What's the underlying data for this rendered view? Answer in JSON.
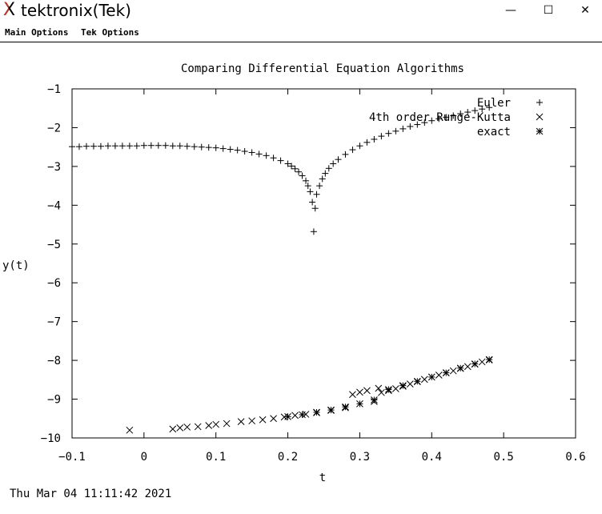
{
  "window": {
    "title": "tektronix(Tek)",
    "minimize_glyph": "—",
    "maximize_glyph": "☐",
    "close_glyph": "✕"
  },
  "menu": {
    "items": [
      "Main Options",
      "Tek Options"
    ]
  },
  "footer": {
    "timestamp": "Thu Mar 04 11:11:42 2021"
  },
  "chart_data": {
    "type": "scatter",
    "title": "Comparing Differential Equation Algorithms",
    "xlabel": "t",
    "ylabel": "y(t)",
    "xlim": [
      -0.1,
      0.6
    ],
    "ylim": [
      -10,
      -1
    ],
    "xticks": [
      -0.1,
      0,
      0.1,
      0.2,
      0.3,
      0.4,
      0.5,
      0.6
    ],
    "xtick_labels": [
      "−0.1",
      "0",
      "0.1",
      "0.2",
      "0.3",
      "0.4",
      "0.5",
      "0.6"
    ],
    "yticks": [
      -1,
      -2,
      -3,
      -4,
      -5,
      -6,
      -7,
      -8,
      -9,
      -10
    ],
    "ytick_labels": [
      "−1",
      "−2",
      "−3",
      "−4",
      "−5",
      "−6",
      "−7",
      "−8",
      "−9",
      "−10"
    ],
    "grid": false,
    "legend_position": "top-right",
    "series": [
      {
        "name": "Euler",
        "marker": "+",
        "x": [
          -0.1,
          -0.09,
          -0.08,
          -0.07,
          -0.06,
          -0.05,
          -0.04,
          -0.03,
          -0.02,
          -0.01,
          0.0,
          0.01,
          0.02,
          0.03,
          0.04,
          0.05,
          0.06,
          0.07,
          0.08,
          0.09,
          0.1,
          0.11,
          0.12,
          0.13,
          0.14,
          0.15,
          0.16,
          0.17,
          0.18,
          0.19,
          0.2,
          0.205,
          0.21,
          0.215,
          0.22,
          0.225,
          0.228,
          0.231,
          0.234,
          0.236,
          0.238,
          0.24,
          0.244,
          0.248,
          0.252,
          0.257,
          0.263,
          0.27,
          0.28,
          0.29,
          0.3,
          0.31,
          0.32,
          0.33,
          0.34,
          0.35,
          0.36,
          0.37,
          0.38,
          0.39,
          0.4,
          0.41,
          0.42,
          0.43,
          0.44,
          0.45,
          0.46,
          0.47,
          0.48
        ],
        "values": [
          -2.49,
          -2.49,
          -2.48,
          -2.48,
          -2.48,
          -2.47,
          -2.47,
          -2.47,
          -2.47,
          -2.47,
          -2.46,
          -2.46,
          -2.46,
          -2.46,
          -2.47,
          -2.47,
          -2.48,
          -2.49,
          -2.5,
          -2.51,
          -2.52,
          -2.54,
          -2.56,
          -2.58,
          -2.61,
          -2.64,
          -2.68,
          -2.72,
          -2.78,
          -2.85,
          -2.93,
          -2.99,
          -3.06,
          -3.14,
          -3.24,
          -3.37,
          -3.5,
          -3.65,
          -3.92,
          -4.68,
          -4.08,
          -3.72,
          -3.5,
          -3.32,
          -3.18,
          -3.05,
          -2.93,
          -2.82,
          -2.69,
          -2.57,
          -2.47,
          -2.38,
          -2.3,
          -2.22,
          -2.15,
          -2.09,
          -2.03,
          -1.97,
          -1.92,
          -1.87,
          -1.82,
          -1.77,
          -1.73,
          -1.69,
          -1.64,
          -1.6,
          -1.56,
          -1.52,
          -1.48
        ]
      },
      {
        "name": "4th order Runge-Kutta",
        "marker": "×",
        "x": [
          -0.02,
          0.04,
          0.05,
          0.06,
          0.075,
          0.09,
          0.1,
          0.115,
          0.135,
          0.15,
          0.165,
          0.18,
          0.195,
          0.21,
          0.225,
          0.24,
          0.26,
          0.28,
          0.29,
          0.3,
          0.31,
          0.32,
          0.326,
          0.33,
          0.34,
          0.35,
          0.36,
          0.37,
          0.38,
          0.39,
          0.4,
          0.41,
          0.42,
          0.43,
          0.44,
          0.45,
          0.46,
          0.47,
          0.48
        ],
        "values": [
          -9.8,
          -9.77,
          -9.74,
          -9.72,
          -9.71,
          -9.68,
          -9.65,
          -9.63,
          -9.58,
          -9.56,
          -9.53,
          -9.5,
          -9.46,
          -9.42,
          -9.39,
          -9.35,
          -9.29,
          -9.22,
          -8.88,
          -8.82,
          -8.78,
          -9.06,
          -8.72,
          -8.83,
          -8.78,
          -8.73,
          -8.67,
          -8.61,
          -8.55,
          -8.49,
          -8.43,
          -8.38,
          -8.32,
          -8.27,
          -8.21,
          -8.16,
          -8.1,
          -8.04,
          -7.99
        ]
      },
      {
        "name": "exact",
        "marker": "*",
        "x": [
          0.2,
          0.22,
          0.24,
          0.26,
          0.28,
          0.3,
          0.32,
          0.34,
          0.36,
          0.38,
          0.4,
          0.42,
          0.44,
          0.46,
          0.48
        ],
        "values": [
          -9.45,
          -9.4,
          -9.34,
          -9.28,
          -9.2,
          -9.12,
          -9.02,
          -8.75,
          -8.65,
          -8.54,
          -8.43,
          -8.32,
          -8.2,
          -8.09,
          -7.98
        ]
      }
    ]
  }
}
